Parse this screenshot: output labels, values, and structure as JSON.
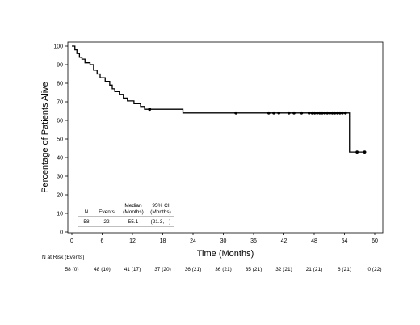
{
  "chart_data": {
    "type": "line",
    "title": "",
    "xlabel": "Time (Months)",
    "ylabel": "Percentage of Patients Alive",
    "xlim": [
      0,
      60
    ],
    "ylim": [
      0,
      100
    ],
    "x_ticks": [
      "0",
      "6",
      "12",
      "18",
      "24",
      "30",
      "36",
      "42",
      "48",
      "54",
      "60"
    ],
    "y_ticks": [
      "0",
      "10",
      "20",
      "30",
      "40",
      "50",
      "60",
      "70",
      "80",
      "90",
      "100"
    ],
    "grid": false,
    "series": [
      {
        "step_curve": [
          [
            0,
            100
          ],
          [
            0.6,
            98
          ],
          [
            1.0,
            96
          ],
          [
            1.5,
            94
          ],
          [
            2.0,
            93
          ],
          [
            2.6,
            91
          ],
          [
            3.6,
            90
          ],
          [
            4.3,
            87
          ],
          [
            5.0,
            85
          ],
          [
            5.6,
            83
          ],
          [
            6.6,
            81
          ],
          [
            7.5,
            79
          ],
          [
            8.0,
            77
          ],
          [
            8.5,
            75.5
          ],
          [
            9.4,
            74
          ],
          [
            10.2,
            72
          ],
          [
            11.0,
            70.5
          ],
          [
            12.3,
            69
          ],
          [
            13.6,
            67.5
          ],
          [
            14.4,
            66
          ],
          [
            15.4,
            66
          ],
          [
            22.0,
            64
          ],
          [
            54.9,
            64
          ],
          [
            55.0,
            43
          ],
          [
            58.3,
            43
          ]
        ],
        "censor_times": [
          15.4,
          32.5,
          39.0,
          40.0,
          41.0,
          43.0,
          44.0,
          45.5,
          47.0,
          47.6,
          48.1,
          48.6,
          49.1,
          49.6,
          50.1,
          50.6,
          51.1,
          51.6,
          52.1,
          52.6,
          53.1,
          53.6,
          54.2,
          56.5,
          58.0
        ]
      }
    ],
    "summary_table": {
      "headers": [
        "N",
        "Events",
        "Median\n(Months)",
        "95% CI\n(Months)"
      ],
      "values": [
        "58",
        "22",
        "55.1",
        "(21.3, --)"
      ]
    },
    "risk_table": {
      "label": "N at Risk (Events)",
      "times": [
        0,
        6,
        12,
        18,
        24,
        30,
        36,
        42,
        48,
        54,
        60
      ],
      "values": [
        "58 (0)",
        "48 (10)",
        "41 (17)",
        "37 (20)",
        "36 (21)",
        "36 (21)",
        "35 (21)",
        "32 (21)",
        "21 (21)",
        "6 (21)",
        "0 (22)"
      ]
    }
  }
}
